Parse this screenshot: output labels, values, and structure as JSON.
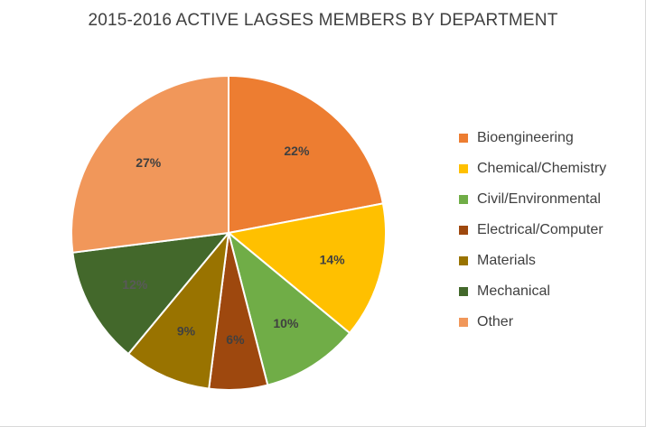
{
  "chart_data": {
    "type": "pie",
    "title": "2015-2016 ACTIVE LAGSES MEMBERS BY DEPARTMENT",
    "slices": [
      {
        "label": "Bioengineering",
        "value": 22,
        "display": "22%",
        "color": "#ED7D31",
        "label_color": "#404040"
      },
      {
        "label": "Chemical/Chemistry",
        "value": 14,
        "display": "14%",
        "color": "#FFC000",
        "label_color": "#404040"
      },
      {
        "label": "Civil/Environmental",
        "value": 10,
        "display": "10%",
        "color": "#70AD47",
        "label_color": "#404040"
      },
      {
        "label": "Electrical/Computer",
        "value": 6,
        "display": "6%",
        "color": "#9E480E",
        "label_color": "#404040"
      },
      {
        "label": "Materials",
        "value": 9,
        "display": "9%",
        "color": "#997300",
        "label_color": "#404040"
      },
      {
        "label": "Mechanical",
        "value": 12,
        "display": "12%",
        "color": "#43682B",
        "label_color": "#595959"
      },
      {
        "label": "Other",
        "value": 27,
        "display": "27%",
        "color": "#F1975A",
        "label_color": "#404040"
      }
    ],
    "legend_position": "right"
  }
}
